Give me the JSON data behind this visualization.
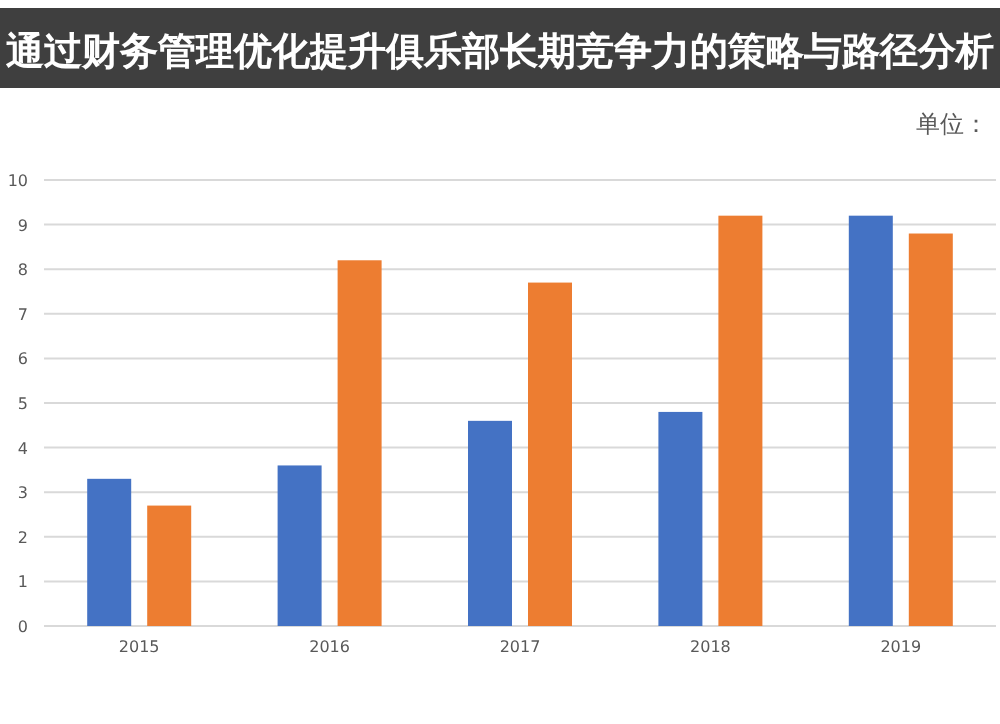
{
  "chart_data": {
    "type": "bar",
    "title": "通过财务管理优化提升俱乐部长期竞争力的策略与路径分析",
    "annotations": [
      "单位："
    ],
    "categories": [
      "2015",
      "2016",
      "2017",
      "2018",
      "2019"
    ],
    "series": [
      {
        "color": "#4472c4",
        "values": [
          3.3,
          3.6,
          4.6,
          4.8,
          9.2
        ]
      },
      {
        "color": "#ed7d31",
        "values": [
          2.7,
          8.2,
          7.7,
          9.2,
          8.8
        ]
      }
    ],
    "ylim": [
      0,
      10
    ],
    "yticks": [
      0,
      1,
      2,
      3,
      4,
      5,
      6,
      7,
      8,
      9,
      10
    ],
    "grid": "y"
  }
}
